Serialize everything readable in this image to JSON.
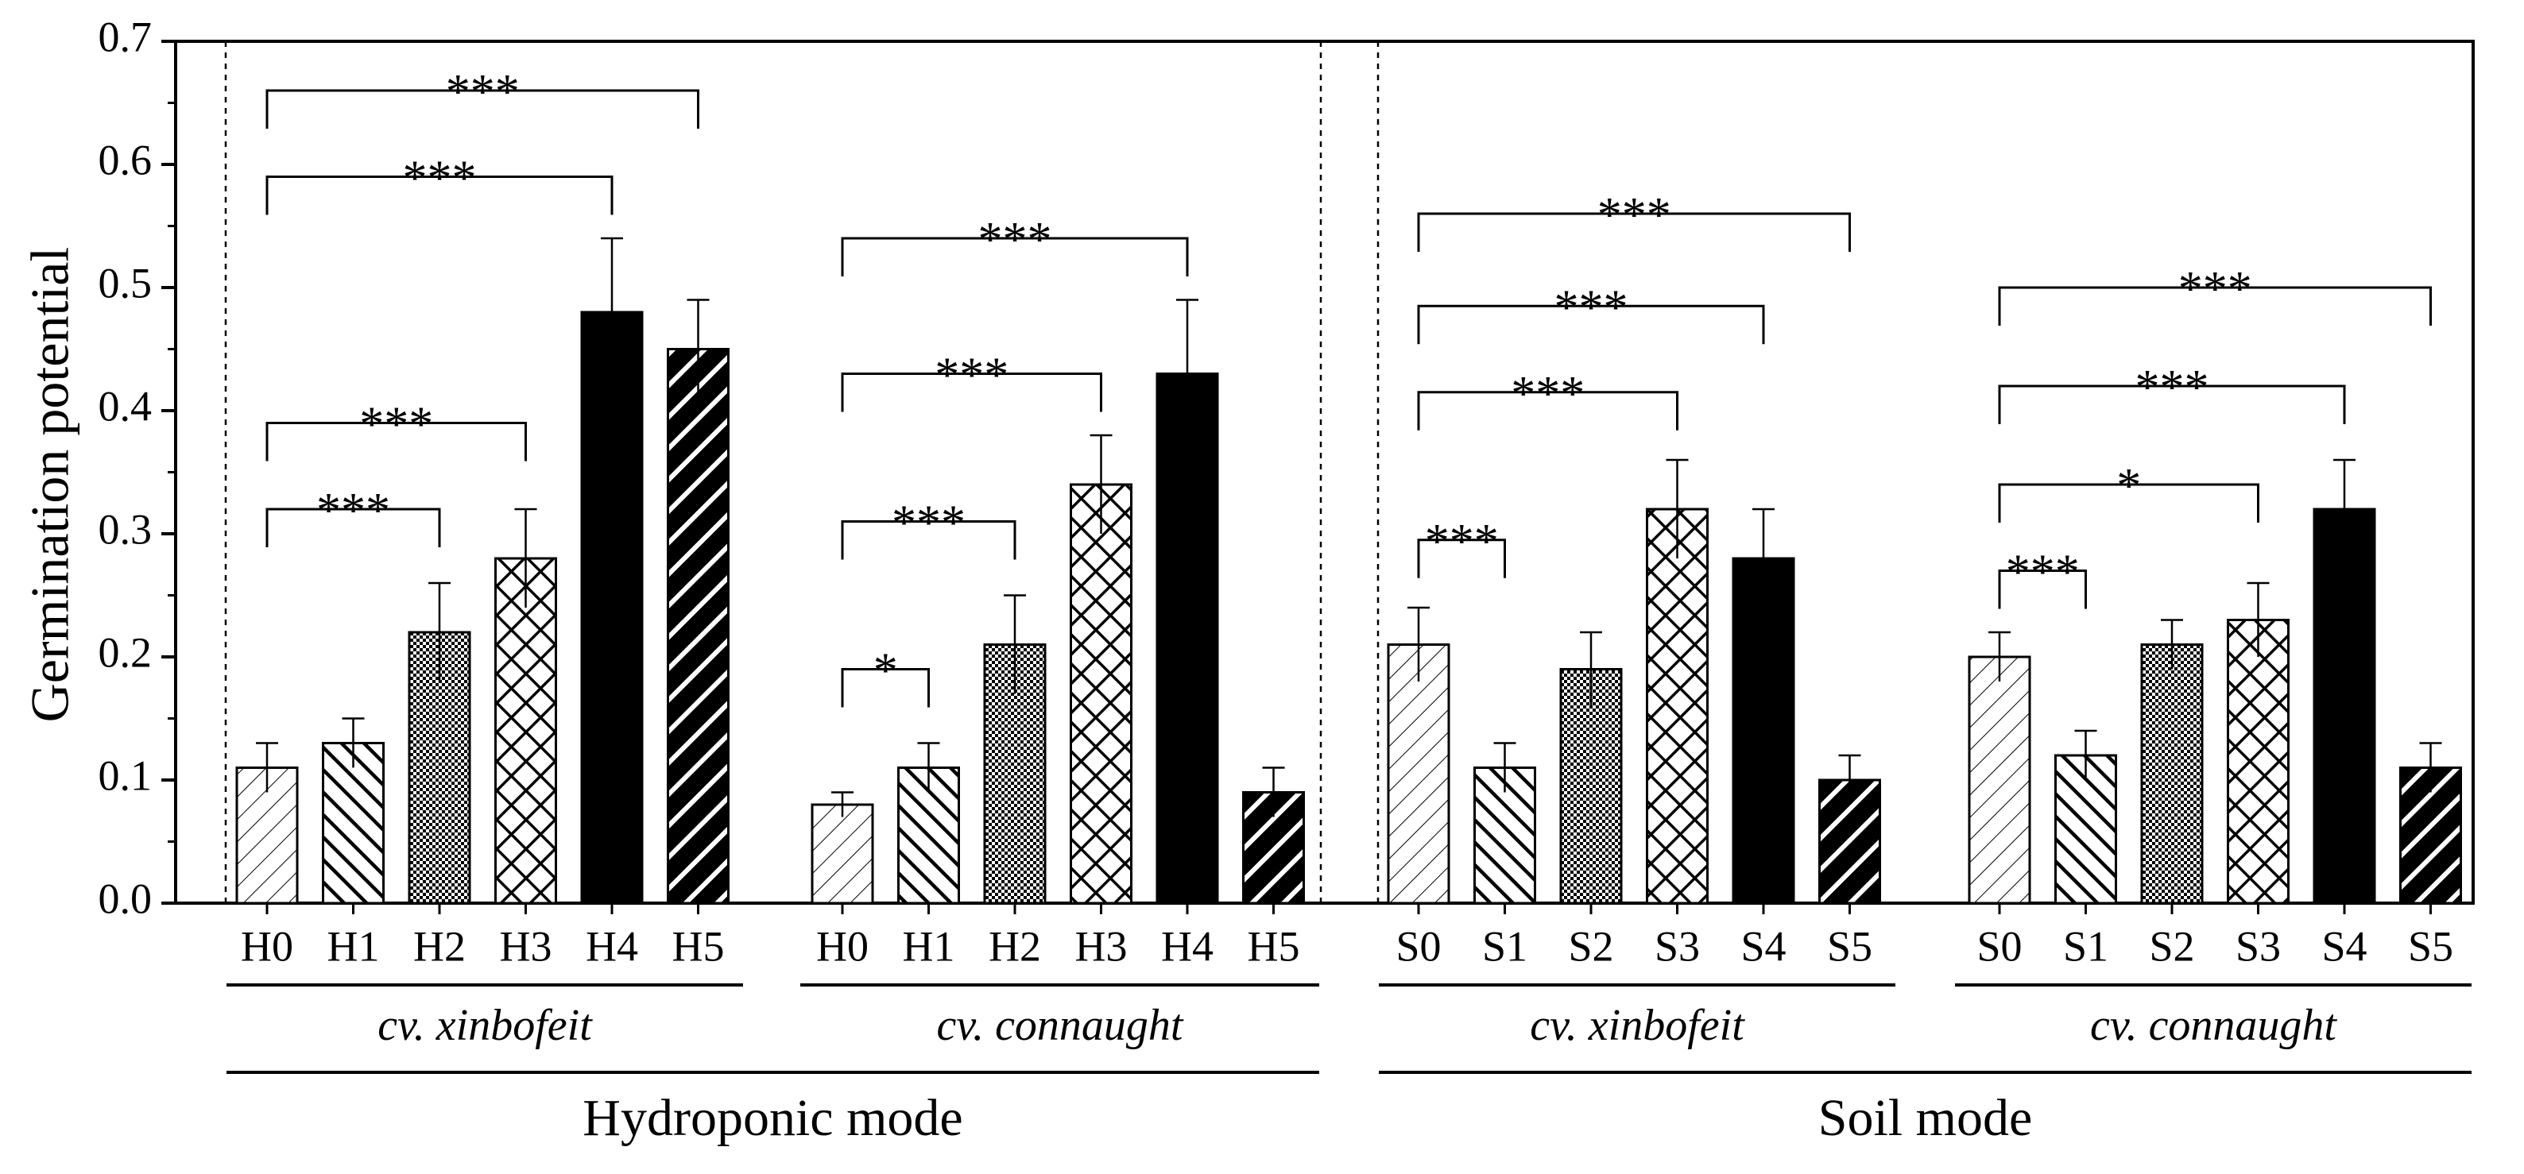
{
  "chart_data": {
    "type": "bar",
    "title": "",
    "xlabel": "",
    "ylabel": "Germination potential",
    "ylim": [
      0,
      0.7
    ],
    "yticks": [
      "0.0",
      "0.1",
      "0.2",
      "0.3",
      "0.4",
      "0.5",
      "0.6",
      "0.7"
    ],
    "grid": false,
    "patterns": {
      "0": "sparse diagonal hatch",
      "1": "dense backslash hatch",
      "2": "fine checker",
      "3": "crosshatch",
      "4": "solid black",
      "5": "thick slash hatch"
    },
    "modes": [
      {
        "label": "Hydroponic mode",
        "cultivars": [
          {
            "label": "cv. xinbofeit",
            "categories": [
              "H0",
              "H1",
              "H2",
              "H3",
              "H4",
              "H5"
            ],
            "values": [
              0.11,
              0.13,
              0.22,
              0.28,
              0.48,
              0.45
            ],
            "errors": [
              0.02,
              0.02,
              0.04,
              0.04,
              0.06,
              0.04
            ],
            "significance": [
              {
                "from": 0,
                "to": 3,
                "label": "***",
                "y": 0.39
              },
              {
                "from": 0,
                "to": 2,
                "label": "***",
                "y": 0.32
              },
              {
                "from": 0,
                "to": 4,
                "label": "***",
                "y": 0.59
              },
              {
                "from": 0,
                "to": 5,
                "label": "***",
                "y": 0.66
              }
            ]
          },
          {
            "label": "cv. connaught",
            "categories": [
              "H0",
              "H1",
              "H2",
              "H3",
              "H4",
              "H5"
            ],
            "values": [
              0.08,
              0.11,
              0.21,
              0.34,
              0.43,
              0.09
            ],
            "errors": [
              0.01,
              0.02,
              0.04,
              0.04,
              0.06,
              0.02
            ],
            "significance": [
              {
                "from": 0,
                "to": 1,
                "label": "*",
                "y": 0.19
              },
              {
                "from": 0,
                "to": 2,
                "label": "***",
                "y": 0.31
              },
              {
                "from": 0,
                "to": 3,
                "label": "***",
                "y": 0.43
              },
              {
                "from": 0,
                "to": 4,
                "label": "***",
                "y": 0.54
              }
            ]
          }
        ]
      },
      {
        "label": "Soil mode",
        "cultivars": [
          {
            "label": "cv. xinbofeit",
            "categories": [
              "S0",
              "S1",
              "S2",
              "S3",
              "S4",
              "S5"
            ],
            "values": [
              0.21,
              0.11,
              0.19,
              0.32,
              0.28,
              0.1
            ],
            "errors": [
              0.03,
              0.02,
              0.03,
              0.04,
              0.04,
              0.02
            ],
            "significance": [
              {
                "from": 0,
                "to": 1,
                "label": "***",
                "y": 0.295
              },
              {
                "from": 0,
                "to": 3,
                "label": "***",
                "y": 0.415
              },
              {
                "from": 0,
                "to": 4,
                "label": "***",
                "y": 0.485
              },
              {
                "from": 0,
                "to": 5,
                "label": "***",
                "y": 0.56
              }
            ]
          },
          {
            "label": "cv. connaught",
            "categories": [
              "S0",
              "S1",
              "S2",
              "S3",
              "S4",
              "S5"
            ],
            "values": [
              0.2,
              0.12,
              0.21,
              0.23,
              0.32,
              0.11
            ],
            "errors": [
              0.02,
              0.02,
              0.02,
              0.03,
              0.04,
              0.02
            ],
            "significance": [
              {
                "from": 0,
                "to": 1,
                "label": "***",
                "y": 0.27
              },
              {
                "from": 0,
                "to": 3,
                "label": "*",
                "y": 0.34
              },
              {
                "from": 0,
                "to": 4,
                "label": "***",
                "y": 0.42
              },
              {
                "from": 0,
                "to": 5,
                "label": "***",
                "y": 0.5
              }
            ]
          }
        ]
      }
    ]
  }
}
